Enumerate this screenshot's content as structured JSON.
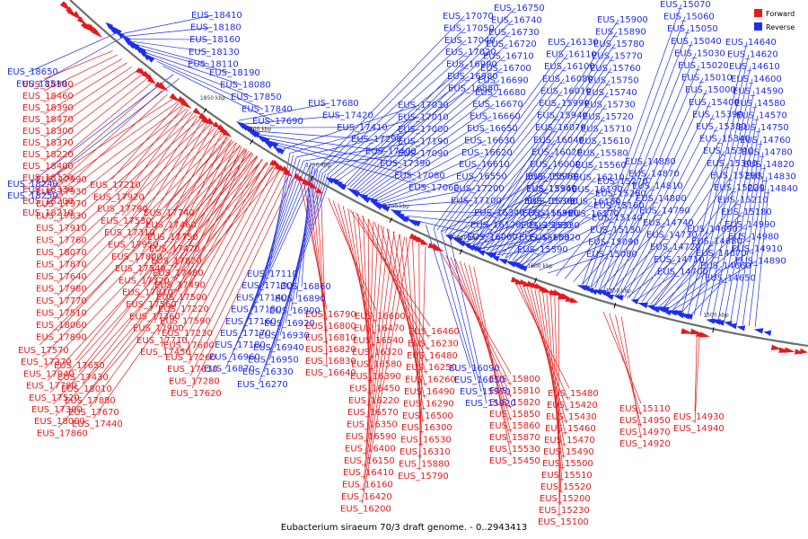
{
  "caption": "Eubacterium siraeum 70/3 draft genome. - 0..2943413",
  "colors": {
    "forward": "#e41a1c",
    "reverse": "#1f2eea",
    "backbone": "#6e6e6e"
  },
  "legend": [
    {
      "label": "Forward",
      "strand": "forward"
    },
    {
      "label": "Reverse",
      "strand": "reverse"
    }
  ],
  "ticks": [
    "1850 kbp",
    "1800 kbp",
    "1750 kbp",
    "1700 kbp",
    "1650 kbp",
    "1600 kbp",
    "1550 kbp",
    "1500 kbp"
  ],
  "labels": {
    "forward": [
      "EUS_18580",
      "EUS_18460",
      "EUS_18390",
      "EUS_18470",
      "EUS_18300",
      "EUS_18370",
      "EUS_18220",
      "EUS_18400",
      "EUS_18120",
      "EUS_18330",
      "EUS_18200",
      "EUS_18210",
      "EUS_17990",
      "EUS_17930",
      "EUS_17970",
      "EUS_17830",
      "EUS_17910",
      "EUS_17760",
      "EUS_18070",
      "EUS_17870",
      "EUS_17640",
      "EUS_17980",
      "EUS_17770",
      "EUS_17510",
      "EUS_18060",
      "EUS_17890",
      "EUS_17570",
      "EUS_17370",
      "EUS_17940",
      "EUS_17780",
      "EUS_17520",
      "EUS_17300",
      "EUS_18000",
      "EUS_17860",
      "EUS_17650",
      "EUS_17430",
      "EUS_18010",
      "EUS_17880",
      "EUS_17670",
      "EUS_17440",
      "EUS_17210",
      "EUS_17920",
      "EUS_17790",
      "EUS_17530",
      "EUS_17310",
      "EUS_17950",
      "EUS_17800",
      "EUS_17540",
      "EUS_17320",
      "EUS_17810",
      "EUS_17560",
      "EUS_17360",
      "EUS_17900",
      "EUS_17710",
      "EUS_17450",
      "EUS_17740",
      "EUS_17460",
      "EUS_17750",
      "EUS_17470",
      "EUS_17820",
      "EUS_17480",
      "EUS_17490",
      "EUS_17500",
      "EUS_17220",
      "EUS_17590",
      "EUS_17230",
      "EUS_17600",
      "EUS_17260",
      "EUS_17610",
      "EUS_17280",
      "EUS_17620",
      "EUS_16790",
      "EUS_16800",
      "EUS_16810",
      "EUS_16820",
      "EUS_16830",
      "EUS_16640",
      "EUS_16600",
      "EUS_16470",
      "EUS_16540",
      "EUS_16320",
      "EUS_16580",
      "EUS_16390",
      "EUS_16450",
      "EUS_16220",
      "EUS_16570",
      "EUS_16350",
      "EUS_16590",
      "EUS_16400",
      "EUS_16150",
      "EUS_16410",
      "EUS_16160",
      "EUS_16420",
      "EUS_16200",
      "EUS_16460",
      "EUS_16230",
      "EUS_16480",
      "EUS_16250",
      "EUS_16260",
      "EUS_16490",
      "EUS_16290",
      "EUS_16500",
      "EUS_16300",
      "EUS_16530",
      "EUS_16310",
      "EUS_15880",
      "EUS_15790",
      "EUS_15800",
      "EUS_15810",
      "EUS_15820",
      "EUS_15850",
      "EUS_15860",
      "EUS_15870",
      "EUS_15530",
      "EUS_15450",
      "EUS_15480",
      "EUS_15420",
      "EUS_15430",
      "EUS_15460",
      "EUS_15470",
      "EUS_15490",
      "EUS_15500",
      "EUS_15510",
      "EUS_15520",
      "EUS_15200",
      "EUS_15230",
      "EUS_15100",
      "EUS_15110",
      "EUS_14950",
      "EUS_14970",
      "EUS_14920",
      "EUS_14930",
      "EUS_14940"
    ],
    "reverse": [
      "EUS_18410",
      "EUS_18180",
      "EUS_18160",
      "EUS_18130",
      "EUS_18110",
      "EUS_18650",
      "EUS_18510",
      "EUS_18190",
      "EUS_18080",
      "EUS_17850",
      "EUS_17840",
      "EUS_17690",
      "EUS_18240",
      "EUS_18250",
      "EUS_17680",
      "EUS_17420",
      "EUS_17410",
      "EUS_17290",
      "EUS_17400",
      "EUS_17390",
      "EUS_17080",
      "EUS_17060",
      "EUS_17030",
      "EUS_17010",
      "EUS_17000",
      "EUS_17190",
      "EUS_17090",
      "EUS_17070",
      "EUS_17050",
      "EUS_17040",
      "EUS_17020",
      "EUS_16990",
      "EUS_16980",
      "EUS_16850",
      "EUS_16750",
      "EUS_16740",
      "EUS_16730",
      "EUS_16720",
      "EUS_16710",
      "EUS_16700",
      "EUS_16690",
      "EUS_16680",
      "EUS_16670",
      "EUS_16660",
      "EUS_16650",
      "EUS_16630",
      "EUS_16620",
      "EUS_16610",
      "EUS_16550",
      "EUS_17200",
      "EUS_17100",
      "EUS_17110",
      "EUS_17130",
      "EUS_17140",
      "EUS_17150",
      "EUS_17160",
      "EUS_17170",
      "EUS_17180",
      "EUS_16960",
      "EUS_16870",
      "EUS_16860",
      "EUS_16890",
      "EUS_16900",
      "EUS_16920",
      "EUS_16930",
      "EUS_16940",
      "EUS_16950",
      "EUS_16330",
      "EUS_16270",
      "EUS_16340",
      "EUS_16120",
      "EUS_16060",
      "EUS_16090",
      "EUS_16050",
      "EUS_15970",
      "EUS_15920",
      "EUS_15900",
      "EUS_15890",
      "EUS_15780",
      "EUS_15770",
      "EUS_15760",
      "EUS_15750",
      "EUS_15740",
      "EUS_15730",
      "EUS_15720",
      "EUS_15710",
      "EUS_15610",
      "EUS_15580",
      "EUS_15560",
      "EUS_16210",
      "EUS_16190",
      "EUS_16180",
      "EUS_16170",
      "EUS_16130",
      "EUS_16110",
      "EUS_16100",
      "EUS_16080",
      "EUS_16010",
      "EUS_15990",
      "EUS_15940",
      "EUS_16070",
      "EUS_16040",
      "EUS_16020",
      "EUS_16000",
      "EUS_15980",
      "EUS_15960",
      "EUS_15700",
      "EUS_15690",
      "EUS_15680",
      "EUS_15600",
      "EUS_15590",
      "EUS_15570",
      "EUS_15540",
      "EUS_15360",
      "EUS_15350",
      "EUS_15330",
      "EUS_15320",
      "EUS_15270",
      "EUS_15260",
      "EUS_15160",
      "EUS_15140",
      "EUS_15130",
      "EUS_15090",
      "EUS_15080",
      "EUS_15070",
      "EUS_15060",
      "EUS_15050",
      "EUS_15040",
      "EUS_15030",
      "EUS_15020",
      "EUS_15010",
      "EUS_15000",
      "EUS_15400",
      "EUS_15390",
      "EUS_15380",
      "EUS_15340",
      "EUS_15310",
      "EUS_15300",
      "EUS_15290",
      "EUS_15220",
      "EUS_15210",
      "EUS_15180",
      "EUS_14990",
      "EUS_14980",
      "EUS_14910",
      "EUS_14890",
      "EUS_14880",
      "EUS_14870",
      "EUS_14810",
      "EUS_14800",
      "EUS_14790",
      "EUS_14740",
      "EUS_14730",
      "EUS_14720",
      "EUS_14710",
      "EUS_14700",
      "EUS_14690",
      "EUS_14680",
      "EUS_14670",
      "EUS_14660",
      "EUS_14650",
      "EUS_14640",
      "EUS_14620",
      "EUS_14610",
      "EUS_14600",
      "EUS_14590",
      "EUS_14580",
      "EUS_14570",
      "EUS_14750",
      "EUS_14760",
      "EUS_14780",
      "EUS_14820",
      "EUS_14830",
      "EUS_14840"
    ]
  }
}
